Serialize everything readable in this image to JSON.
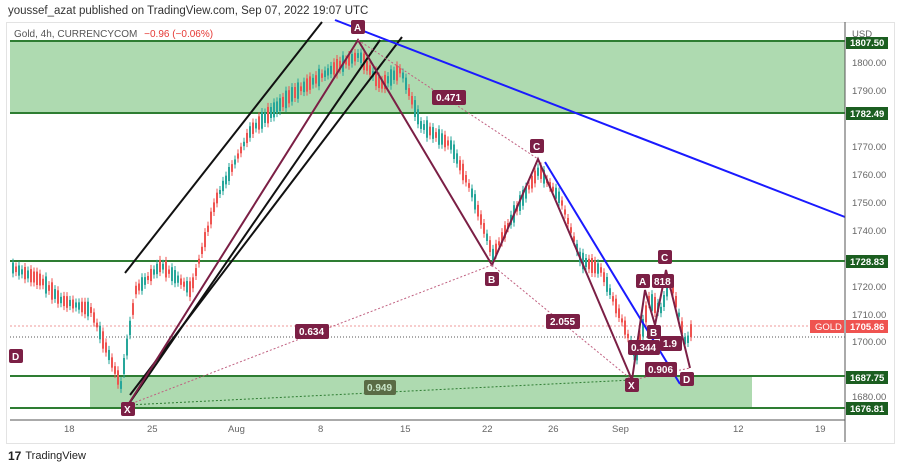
{
  "header": {
    "text": "youssef_azat published on TradingView.com, Sep 07, 2022 19:07 UTC"
  },
  "legend": {
    "symbol": "Gold, 4h, CURRENCYCOM",
    "change": "−0.96 (−0.06%)"
  },
  "price_axis": {
    "currency": "USD",
    "ticks": [
      "1800.00",
      "1790.00",
      "1770.00",
      "1760.00",
      "1750.00",
      "1740.00",
      "1720.00",
      "1710.00",
      "1700.00",
      "1680.00"
    ],
    "levels": [
      {
        "label": "1807.50",
        "color": "#1b5e20"
      },
      {
        "label": "1782.49",
        "color": "#1b5e20"
      },
      {
        "label": "1728.83",
        "color": "#1b5e20"
      },
      {
        "label": "1687.75",
        "color": "#1b5e20"
      },
      {
        "label": "1676.81",
        "color": "#1b5e20"
      }
    ],
    "current": {
      "name": "GOLD",
      "price": "1705.86",
      "color": "#ef5350"
    }
  },
  "time_axis": {
    "ticks": [
      "18",
      "25",
      "Aug",
      "8",
      "15",
      "22",
      "26",
      "Sep",
      "12",
      "19"
    ]
  },
  "pattern_labels": {
    "A1": "A",
    "X1": "X",
    "B1": "B",
    "C1": "C",
    "D1": "D",
    "X2": "X",
    "A2": "A",
    "B2": "B",
    "C2": "C",
    "D2": "D",
    "r471": "0.471",
    "r634": "0.634",
    "r949": "0.949",
    "r2055": "2.055",
    "r344": "0.344",
    "r906": "0.906",
    "r818": "818",
    "r19": "1.9"
  },
  "footer": {
    "brand": "TradingView",
    "logo": "17"
  },
  "chart_data": {
    "type": "candlestick",
    "title": "Gold, 4h, CURRENCYCOM",
    "ylabel": "USD",
    "ylim": [
      1672,
      1812
    ],
    "x_ticks": [
      "18",
      "25",
      "Aug",
      "8",
      "15",
      "22",
      "26",
      "Sep",
      "12",
      "19"
    ],
    "last_price": 1705.86,
    "change": -0.96,
    "change_pct": -0.06,
    "zones": [
      {
        "name": "resistance",
        "from": 1782.49,
        "to": 1807.5,
        "color": "#a5d6a7"
      },
      {
        "name": "support",
        "from": 1676.81,
        "to": 1687.75,
        "color": "#a5d6a7"
      }
    ],
    "horizontal_lines": [
      1728.83
    ],
    "harmonic_patterns": [
      {
        "points": {
          "X": 1686,
          "A": 1807,
          "B": 1728,
          "C": 1765,
          "D": 1688
        },
        "ratios": {
          "XB": 0.634,
          "AC": 0.471,
          "BD": 2.055,
          "XD": 0.949
        }
      },
      {
        "points": {
          "X": 1688,
          "A": 1718,
          "B": 1705,
          "C": 1721,
          "D": 1692
        },
        "ratios": {
          "XB": 0.344,
          "AC": 818,
          "BD": 1.9,
          "XD": 0.906
        }
      }
    ]
  }
}
